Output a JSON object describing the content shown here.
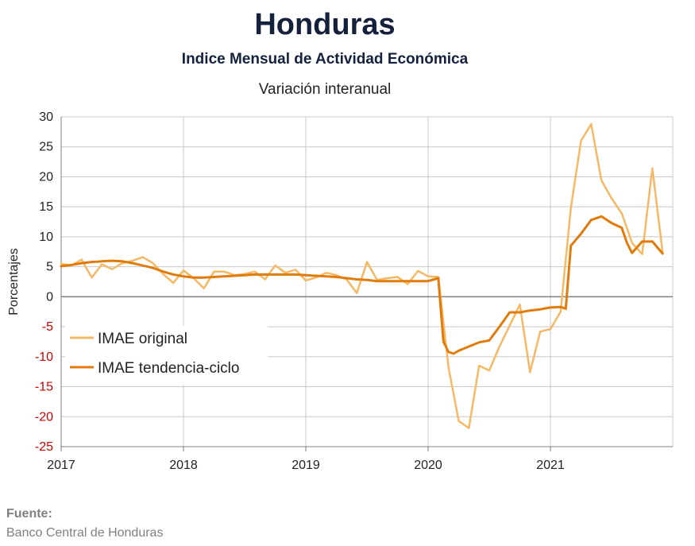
{
  "header": {
    "title": "Honduras",
    "subtitle": "Indice Mensual de  Actividad Económica",
    "subtitle2": "Variación interanual"
  },
  "footer": {
    "source_label": "Fuente:",
    "source_text": "Banco Central de Honduras"
  },
  "colors": {
    "original": "#f5b865",
    "trend": "#e07b0c",
    "negative_tick": "#cc0000",
    "grid": "#c8c8c8",
    "zero_line": "#7f7f7f"
  },
  "chart_data": {
    "type": "line",
    "ylabel": "Porcentajes",
    "xlabel": "",
    "ylim": [
      -25,
      30
    ],
    "yticks": [
      30,
      25,
      20,
      15,
      10,
      5,
      0,
      -5,
      -10,
      -15,
      -20,
      -25
    ],
    "xlim": [
      2017.0,
      2022.0
    ],
    "xticks": [
      "2017",
      "2018",
      "2019",
      "2020",
      "2021"
    ],
    "grid": true,
    "legend": "left-middle",
    "series": [
      {
        "name": "IMAE original",
        "x": [
          2017.0,
          2017.083,
          2017.167,
          2017.25,
          2017.333,
          2017.417,
          2017.5,
          2017.583,
          2017.667,
          2017.75,
          2017.833,
          2017.917,
          2018.0,
          2018.083,
          2018.167,
          2018.25,
          2018.333,
          2018.417,
          2018.5,
          2018.583,
          2018.667,
          2018.75,
          2018.833,
          2018.917,
          2019.0,
          2019.083,
          2019.167,
          2019.25,
          2019.333,
          2019.417,
          2019.5,
          2019.583,
          2019.667,
          2019.75,
          2019.833,
          2019.917,
          2020.0,
          2020.083,
          2020.167,
          2020.25,
          2020.333,
          2020.417,
          2020.5,
          2020.583,
          2020.667,
          2020.75,
          2020.833,
          2020.917,
          2021.0,
          2021.083,
          2021.167,
          2021.25,
          2021.333,
          2021.417,
          2021.5,
          2021.583,
          2021.667,
          2021.75,
          2021.833,
          2021.917
        ],
        "values": [
          5.5,
          5.2,
          6.2,
          3.2,
          5.4,
          4.6,
          5.6,
          6.0,
          6.6,
          5.6,
          3.8,
          2.3,
          4.4,
          3.1,
          1.4,
          4.2,
          4.2,
          3.6,
          3.8,
          4.2,
          2.9,
          5.2,
          4.0,
          4.5,
          2.7,
          3.2,
          4.0,
          3.6,
          2.9,
          0.6,
          5.8,
          2.8,
          3.1,
          3.3,
          2.1,
          4.3,
          3.4,
          3.3,
          -11.8,
          -20.7,
          -21.9,
          -11.5,
          -12.3,
          -8.3,
          -4.8,
          -1.3,
          -12.6,
          -5.8,
          -5.4,
          -2.5,
          14.8,
          26.0,
          28.8,
          19.4,
          16.4,
          13.9,
          9.0,
          7.1,
          21.4,
          7.4
        ]
      },
      {
        "name": "IMAE tendencia-ciclo",
        "x": [
          2017.0,
          2017.083,
          2017.167,
          2017.25,
          2017.333,
          2017.417,
          2017.5,
          2017.583,
          2017.667,
          2017.75,
          2017.833,
          2017.917,
          2018.0,
          2018.083,
          2018.167,
          2018.25,
          2018.333,
          2018.417,
          2018.5,
          2018.583,
          2018.667,
          2018.75,
          2018.833,
          2018.917,
          2019.0,
          2019.083,
          2019.167,
          2019.25,
          2019.333,
          2019.417,
          2019.5,
          2019.583,
          2019.667,
          2019.75,
          2019.833,
          2019.917,
          2020.0,
          2020.083,
          2020.125,
          2020.167,
          2020.208,
          2020.25,
          2020.333,
          2020.417,
          2020.5,
          2020.583,
          2020.667,
          2020.708,
          2020.75,
          2020.833,
          2020.917,
          2021.0,
          2021.083,
          2021.125,
          2021.167,
          2021.25,
          2021.333,
          2021.417,
          2021.5,
          2021.583,
          2021.625,
          2021.667,
          2021.75,
          2021.833,
          2021.917
        ],
        "values": [
          5.1,
          5.3,
          5.6,
          5.8,
          5.9,
          6.0,
          5.9,
          5.6,
          5.2,
          4.8,
          4.2,
          3.7,
          3.4,
          3.2,
          3.2,
          3.3,
          3.4,
          3.5,
          3.6,
          3.7,
          3.7,
          3.7,
          3.7,
          3.7,
          3.6,
          3.5,
          3.4,
          3.3,
          3.1,
          2.9,
          2.8,
          2.6,
          2.6,
          2.6,
          2.6,
          2.6,
          2.6,
          3.1,
          -7.5,
          -9.2,
          -9.5,
          -9.0,
          -8.3,
          -7.6,
          -7.3,
          -5.0,
          -2.6,
          -2.6,
          -2.6,
          -2.3,
          -2.1,
          -1.8,
          -1.7,
          -2.0,
          8.5,
          10.5,
          12.8,
          13.4,
          12.3,
          11.5,
          9.0,
          7.3,
          9.2,
          9.2,
          7.2
        ]
      }
    ]
  }
}
